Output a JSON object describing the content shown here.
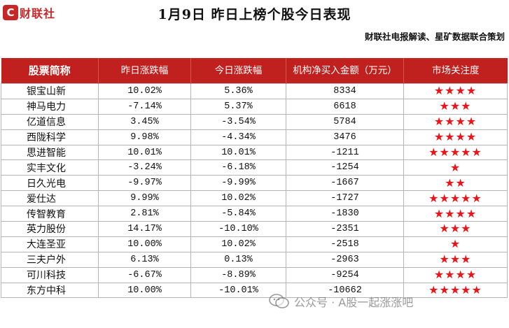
{
  "brand": {
    "logo_letter": "C",
    "logo_text": "财联社",
    "color": "#c62828"
  },
  "title": "1月9日  昨日上榜个股今日表现",
  "subtitle": "财联社电报解读、星矿数据联合策划",
  "table": {
    "header_color": "#c0201e",
    "star_color": "#e8161b",
    "columns": [
      "股票简称",
      "昨日涨跌幅",
      "今日涨跌幅",
      "机构净买入金额（万元）",
      "市场关注度"
    ],
    "rows": [
      {
        "name": "银宝山新",
        "yesterday": "10.02%",
        "today": "5.36%",
        "net_buy": "8334",
        "stars": "★★★★"
      },
      {
        "name": "神马电力",
        "yesterday": "-7.14%",
        "today": "5.37%",
        "net_buy": "6618",
        "stars": "★★★"
      },
      {
        "name": "亿道信息",
        "yesterday": "3.45%",
        "today": "-3.54%",
        "net_buy": "5784",
        "stars": "★★★★"
      },
      {
        "name": "西陇科学",
        "yesterday": "9.98%",
        "today": "-4.34%",
        "net_buy": "3476",
        "stars": "★★★★"
      },
      {
        "name": "思进智能",
        "yesterday": "10.01%",
        "today": "10.01%",
        "net_buy": "-1211",
        "stars": "★★★★★"
      },
      {
        "name": "实丰文化",
        "yesterday": "-3.24%",
        "today": "-6.18%",
        "net_buy": "-1254",
        "stars": "★"
      },
      {
        "name": "日久光电",
        "yesterday": "-9.97%",
        "today": "-9.99%",
        "net_buy": "-1667",
        "stars": "★★"
      },
      {
        "name": "爱仕达",
        "yesterday": "9.99%",
        "today": "10.02%",
        "net_buy": "-1727",
        "stars": "★★★★★"
      },
      {
        "name": "传智教育",
        "yesterday": "2.81%",
        "today": "-5.84%",
        "net_buy": "-1830",
        "stars": "★★★★"
      },
      {
        "name": "英力股份",
        "yesterday": "14.17%",
        "today": "-10.10%",
        "net_buy": "-2351",
        "stars": "★★★"
      },
      {
        "name": "大连圣亚",
        "yesterday": "10.00%",
        "today": "10.02%",
        "net_buy": "-2518",
        "stars": "★"
      },
      {
        "name": "三夫户外",
        "yesterday": "6.13%",
        "today": "0.13%",
        "net_buy": "-2963",
        "stars": "★★★"
      },
      {
        "name": "可川科技",
        "yesterday": "-6.67%",
        "today": "-8.89%",
        "net_buy": "-9254",
        "stars": "★★★★"
      },
      {
        "name": "东方中科",
        "yesterday": "10.00%",
        "today": "-10.01%",
        "net_buy": "-10662",
        "stars": "★★★★★"
      }
    ]
  },
  "watermark": {
    "text": "公众号 · A股一起涨涨吧",
    "icon": "wechat-icon"
  }
}
